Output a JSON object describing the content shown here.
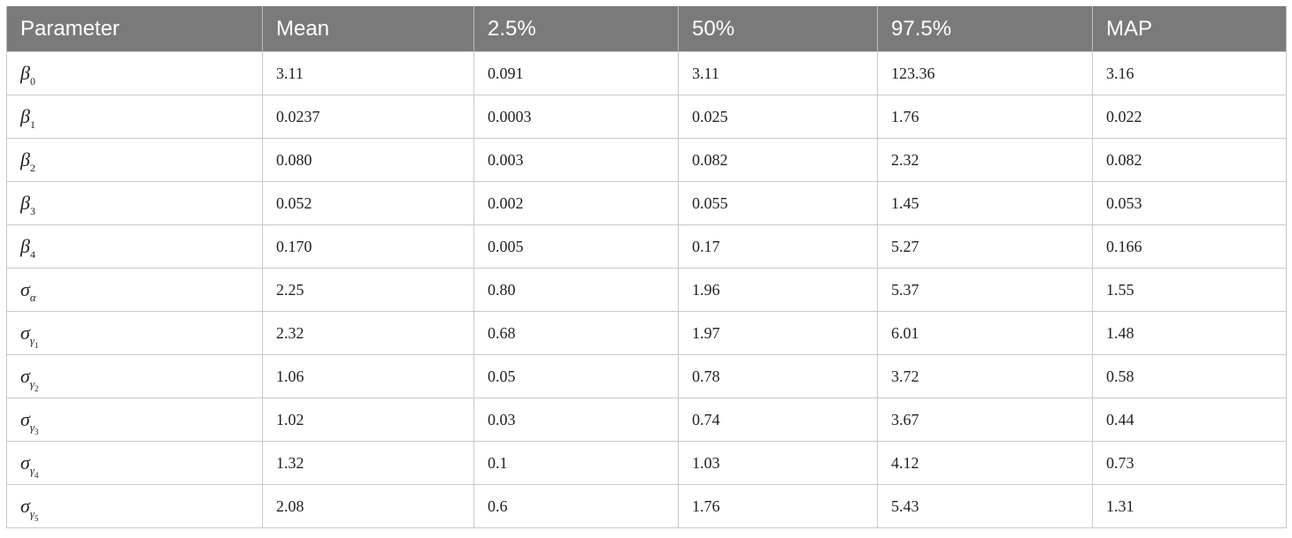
{
  "table": {
    "headers": [
      "Parameter",
      "Mean",
      "2.5%",
      "50%",
      "97.5%",
      "MAP"
    ],
    "rows": [
      {
        "param": {
          "symbol": "β",
          "sub": "0",
          "subsub": ""
        },
        "values": [
          "3.11",
          "0.091",
          "3.11",
          "123.36",
          "3.16"
        ]
      },
      {
        "param": {
          "symbol": "β",
          "sub": "1",
          "subsub": ""
        },
        "values": [
          "0.0237",
          "0.0003",
          "0.025",
          "1.76",
          "0.022"
        ]
      },
      {
        "param": {
          "symbol": "β",
          "sub": "2",
          "subsub": ""
        },
        "values": [
          "0.080",
          "0.003",
          "0.082",
          "2.32",
          "0.082"
        ]
      },
      {
        "param": {
          "symbol": "β",
          "sub": "3",
          "subsub": ""
        },
        "values": [
          "0.052",
          "0.002",
          "0.055",
          "1.45",
          "0.053"
        ]
      },
      {
        "param": {
          "symbol": "β",
          "sub": "4",
          "subsub": ""
        },
        "values": [
          "0.170",
          "0.005",
          "0.17",
          "5.27",
          "0.166"
        ]
      },
      {
        "param": {
          "symbol": "σ",
          "sub": "α",
          "subsub": ""
        },
        "values": [
          "2.25",
          "0.80",
          "1.96",
          "5.37",
          "1.55"
        ]
      },
      {
        "param": {
          "symbol": "σ",
          "sub": "γ",
          "subsub": "1"
        },
        "values": [
          "2.32",
          "0.68",
          "1.97",
          "6.01",
          "1.48"
        ]
      },
      {
        "param": {
          "symbol": "σ",
          "sub": "γ",
          "subsub": "2"
        },
        "values": [
          "1.06",
          "0.05",
          "0.78",
          "3.72",
          "0.58"
        ]
      },
      {
        "param": {
          "symbol": "σ",
          "sub": "γ",
          "subsub": "3"
        },
        "values": [
          "1.02",
          "0.03",
          "0.74",
          "3.67",
          "0.44"
        ]
      },
      {
        "param": {
          "symbol": "σ",
          "sub": "γ",
          "subsub": "4"
        },
        "values": [
          "1.32",
          "0.1",
          "1.03",
          "4.12",
          "0.73"
        ]
      },
      {
        "param": {
          "symbol": "σ",
          "sub": "γ",
          "subsub": "5"
        },
        "values": [
          "2.08",
          "0.6",
          "1.76",
          "5.43",
          "1.31"
        ]
      }
    ]
  }
}
